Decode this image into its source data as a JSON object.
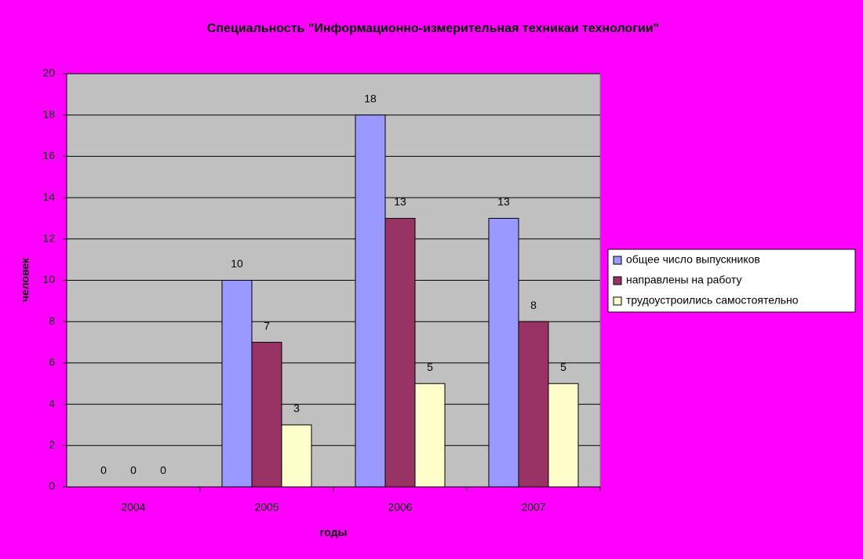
{
  "chart_data": {
    "type": "bar",
    "title": "Специальность \"Информационно-измерительная техникаи технологии\"",
    "x_label": "годы",
    "y_label": "человек",
    "categories": [
      "2004",
      "2005",
      "2006",
      "2007"
    ],
    "series": [
      {
        "name": "общее число выпускников",
        "color": "#9999ff",
        "values": [
          0,
          10,
          18,
          13
        ]
      },
      {
        "name": "направлены на работу",
        "color": "#993366",
        "values": [
          0,
          7,
          13,
          8
        ]
      },
      {
        "name": "трудоустроились самостоятельно",
        "color": "#ffffcc",
        "values": [
          0,
          3,
          5,
          5
        ]
      }
    ],
    "ylim": [
      0,
      20
    ],
    "yticks": [
      0,
      2,
      4,
      6,
      8,
      10,
      12,
      14,
      16,
      18,
      20
    ],
    "grid": true,
    "legend": "right",
    "plot_color": "#c0c0c0"
  }
}
